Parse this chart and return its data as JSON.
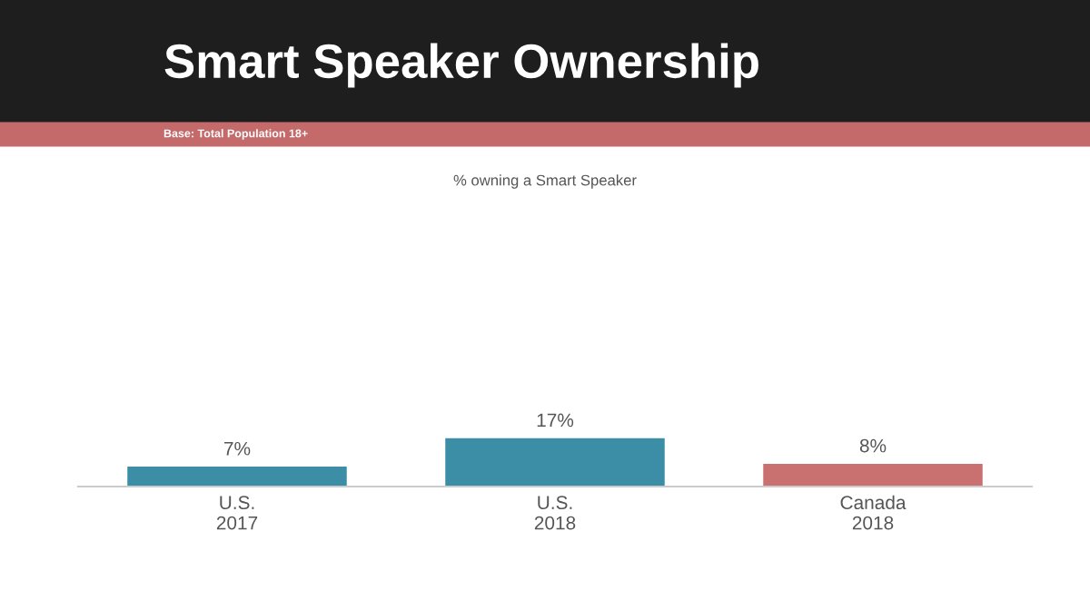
{
  "chart_data": {
    "type": "bar",
    "title": "Smart Speaker Ownership",
    "subtitle": "Base: Total Population 18+",
    "annotations": [
      "% owning a Smart Speaker"
    ],
    "categories": [
      "U.S.\n2017",
      "U.S.\n2018",
      "Canada\n2018"
    ],
    "values": [
      7,
      17,
      8
    ],
    "colors": [
      "#3b8ea5",
      "#3b8ea5",
      "#c97171"
    ],
    "value_labels": [
      "7%",
      "17%",
      "8%"
    ],
    "tick_labels": "x",
    "grid": false,
    "legend": false
  }
}
